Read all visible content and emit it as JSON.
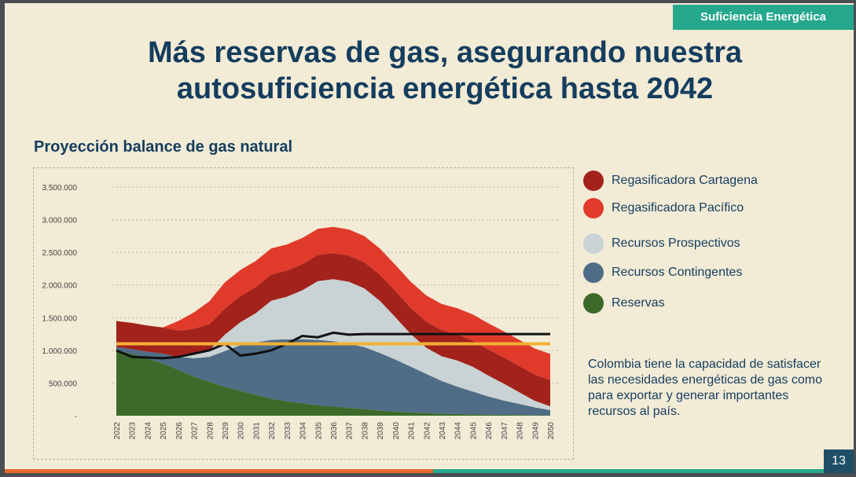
{
  "badge": "Suficiencia Energética",
  "title_line1": "Más reservas de gas, asegurando nuestra",
  "title_line2": "autosuficiencia energética hasta 2042",
  "page_number": "13",
  "note": "Colombia tiene la capacidad de satisfacer las necesidades energéticas de gas como para exportar y generar importantes recursos al país.",
  "legend": [
    {
      "label": "Regasificadora Cartagena",
      "color": "#a3221c",
      "icon": "dark-red-circle-icon"
    },
    {
      "label": "Regasificadora Pacífico",
      "color": "#e03a2b",
      "icon": "red-circle-icon"
    },
    {
      "label": "Recursos Prospectivos",
      "color": "#c9d2d4",
      "icon": "light-grey-circle-icon"
    },
    {
      "label": "Recursos Contingentes",
      "color": "#4f6d86",
      "icon": "blue-pattern-circle-icon"
    },
    {
      "label": "Reservas",
      "color": "#3d6a2a",
      "icon": "green-circle-icon"
    }
  ],
  "chart_data": {
    "type": "area",
    "title": "Proyección balance de gas natural",
    "x": [
      "2022",
      "2023",
      "2024",
      "2025",
      "2026",
      "2027",
      "2028",
      "2029",
      "2030",
      "2031",
      "2032",
      "2033",
      "2034",
      "2035",
      "2036",
      "2037",
      "2038",
      "2039",
      "2040",
      "2041",
      "2042",
      "2043",
      "2044",
      "2045",
      "2046",
      "2047",
      "2048",
      "2049",
      "2050"
    ],
    "ylim": [
      0,
      3500000
    ],
    "yticks": [
      "-",
      "500.000",
      "1.000.000",
      "1.500.000",
      "2.000.000",
      "2.500.000",
      "3.000.000",
      "3.500.000"
    ],
    "ytick_values": [
      0,
      500000,
      1000000,
      1500000,
      2000000,
      2500000,
      3000000,
      3500000
    ],
    "series": [
      {
        "name": "Reservas",
        "color": "#3d6a2a",
        "values": [
          1000000,
          950000,
          880000,
          800000,
          700000,
          600000,
          520000,
          440000,
          380000,
          320000,
          260000,
          220000,
          190000,
          160000,
          140000,
          120000,
          100000,
          80000,
          60000,
          50000,
          40000,
          30000,
          25000,
          20000,
          15000,
          12000,
          10000,
          8000,
          5000
        ]
      },
      {
        "name": "Recursos Contingentes",
        "color": "#4f6d86",
        "values": [
          50000,
          70000,
          100000,
          150000,
          200000,
          280000,
          380000,
          550000,
          700000,
          800000,
          900000,
          950000,
          980000,
          1000000,
          1000000,
          980000,
          950000,
          880000,
          800000,
          700000,
          600000,
          500000,
          420000,
          350000,
          280000,
          220000,
          170000,
          120000,
          80000
        ]
      },
      {
        "name": "Recursos Prospectivos",
        "color": "#c9d2d4",
        "values": [
          0,
          0,
          0,
          0,
          0,
          50000,
          100000,
          250000,
          350000,
          450000,
          600000,
          650000,
          750000,
          900000,
          950000,
          950000,
          900000,
          800000,
          650000,
          500000,
          400000,
          380000,
          400000,
          380000,
          320000,
          260000,
          180000,
          100000,
          60000
        ]
      },
      {
        "name": "Regasificadora Cartagena",
        "color": "#a3221c",
        "values": [
          400000,
          400000,
          400000,
          400000,
          400000,
          400000,
          400000,
          400000,
          400000,
          400000,
          400000,
          400000,
          400000,
          400000,
          400000,
          400000,
          400000,
          400000,
          400000,
          400000,
          400000,
          400000,
          400000,
          400000,
          400000,
          400000,
          400000,
          400000,
          400000
        ]
      },
      {
        "name": "Regasificadora Pacífico",
        "color": "#e03a2b",
        "values": [
          0,
          0,
          0,
          0,
          150000,
          250000,
          350000,
          400000,
          400000,
          400000,
          400000,
          400000,
          400000,
          400000,
          400000,
          400000,
          400000,
          400000,
          400000,
          400000,
          400000,
          400000,
          400000,
          400000,
          400000,
          400000,
          400000,
          400000,
          400000
        ]
      }
    ],
    "lines": [
      {
        "color": "#111111",
        "values": [
          1000000,
          900000,
          890000,
          880000,
          900000,
          950000,
          1000000,
          1100000,
          920000,
          950000,
          1000000,
          1100000,
          1220000,
          1200000,
          1270000,
          1240000,
          1250000,
          1250000,
          1250000,
          1250000,
          1250000,
          1250000,
          1250000,
          1250000,
          1250000,
          1250000,
          1250000,
          1250000,
          1250000
        ]
      },
      {
        "color": "#f2b134",
        "values": [
          1100000,
          1100000,
          1100000,
          1100000,
          1100000,
          1100000,
          1100000,
          1100000,
          1100000,
          1100000,
          1100000,
          1100000,
          1100000,
          1100000,
          1100000,
          1100000,
          1100000,
          1100000,
          1100000,
          1100000,
          1100000,
          1100000,
          1100000,
          1100000,
          1100000,
          1100000,
          1100000,
          1100000,
          1100000
        ]
      }
    ]
  }
}
